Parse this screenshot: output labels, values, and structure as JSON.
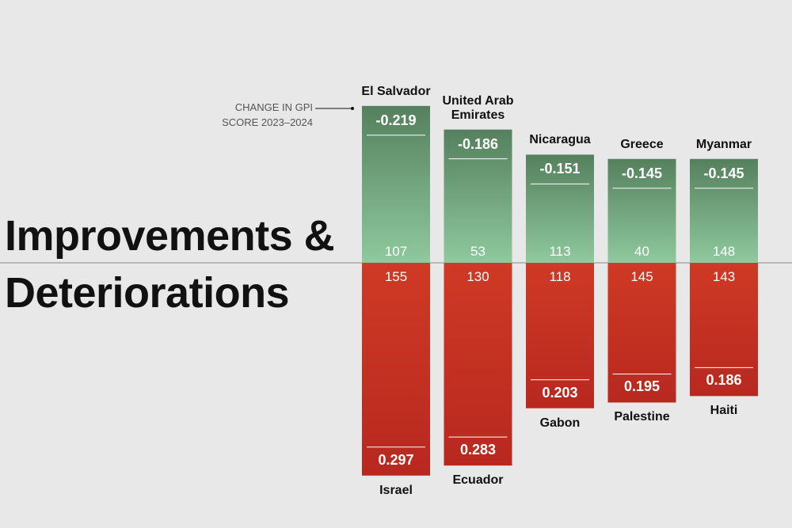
{
  "chart_data": {
    "type": "diverging_bar",
    "title": "Improvements & Deteriorations",
    "annotation": "CHANGE IN GPI SCORE 2023–2024",
    "improvements": {
      "categories": [
        "El Salvador",
        "United Arab Emirates",
        "Nicaragua",
        "Greece",
        "Myanmar"
      ],
      "values": [
        -0.219,
        -0.186,
        -0.151,
        -0.145,
        -0.145
      ],
      "ranks": [
        107,
        53,
        113,
        40,
        148
      ],
      "colors": [
        "#55805d",
        "#8fc99e"
      ]
    },
    "deteriorations": {
      "categories": [
        "Israel",
        "Ecuador",
        "Gabon",
        "Palestine",
        "Haiti"
      ],
      "values": [
        0.297,
        0.283,
        0.203,
        0.195,
        0.186
      ],
      "ranks": [
        155,
        130,
        118,
        145,
        143
      ],
      "colors": [
        "#cf3a25",
        "#b8281f"
      ]
    }
  }
}
